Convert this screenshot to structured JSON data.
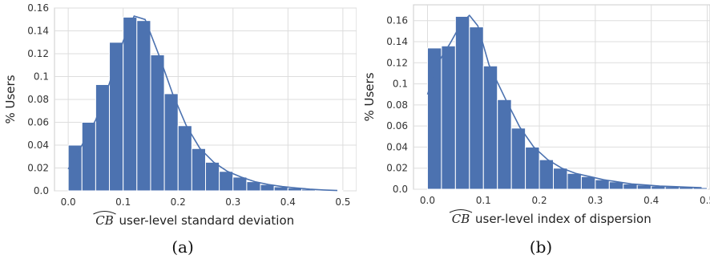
{
  "chart_data": [
    {
      "type": "bar",
      "subtype": "histogram-with-kde",
      "caption": "(a)",
      "xlabel_prefix": "CB",
      "xlabel": "user-level standard deviation",
      "ylabel": "% Users",
      "xlim": [
        -0.025,
        0.525
      ],
      "ylim": [
        0,
        0.16
      ],
      "xticks": [
        "0.0",
        "0.1",
        "0.2",
        "0.3",
        "0.4",
        "0.5"
      ],
      "yticks": [
        "0.0",
        "0.02",
        "0.04",
        "0.06",
        "0.08",
        "0.1",
        "0.12",
        "0.14",
        "0.16"
      ],
      "grid": true,
      "bin_width": 0.025,
      "bin_start": 0.0,
      "values": [
        0.04,
        0.06,
        0.093,
        0.13,
        0.152,
        0.149,
        0.119,
        0.085,
        0.057,
        0.037,
        0.025,
        0.017,
        0.012,
        0.008,
        0.0055,
        0.0035,
        0.0025,
        0.0015,
        0.0008,
        0.0003
      ],
      "kde": {
        "x": [
          0.0,
          0.025,
          0.05,
          0.075,
          0.1,
          0.12,
          0.14,
          0.165,
          0.19,
          0.215,
          0.24,
          0.265,
          0.29,
          0.315,
          0.34,
          0.365,
          0.39,
          0.415,
          0.44,
          0.465,
          0.49
        ],
        "y": [
          0.019,
          0.04,
          0.062,
          0.094,
          0.131,
          0.153,
          0.15,
          0.119,
          0.085,
          0.057,
          0.037,
          0.025,
          0.017,
          0.012,
          0.008,
          0.0055,
          0.0037,
          0.0025,
          0.0015,
          0.0008,
          0.0003
        ]
      },
      "color": "#4c72b0"
    },
    {
      "type": "bar",
      "subtype": "histogram-with-kde",
      "caption": "(b)",
      "xlabel_prefix": "CB",
      "xlabel": "user-level index of dispersion",
      "ylabel": "% Users",
      "xlim": [
        -0.025,
        0.505
      ],
      "ylim": [
        0,
        0.175
      ],
      "xticks": [
        "0.0",
        "0.1",
        "0.2",
        "0.3",
        "0.4",
        "0.5"
      ],
      "yticks": [
        "0.0",
        "0.02",
        "0.04",
        "0.06",
        "0.08",
        "0.1",
        "0.12",
        "0.14",
        "0.16"
      ],
      "grid": true,
      "bin_width": 0.025,
      "bin_start": 0.0,
      "values": [
        0.134,
        0.136,
        0.164,
        0.154,
        0.117,
        0.085,
        0.058,
        0.04,
        0.028,
        0.02,
        0.015,
        0.012,
        0.009,
        0.007,
        0.005,
        0.004,
        0.003,
        0.0025,
        0.002,
        0.0015
      ],
      "kde": {
        "x": [
          0.0,
          0.02,
          0.04,
          0.06,
          0.075,
          0.09,
          0.11,
          0.14,
          0.165,
          0.19,
          0.215,
          0.24,
          0.265,
          0.29,
          0.315,
          0.34,
          0.365,
          0.39,
          0.415,
          0.44,
          0.465,
          0.49
        ],
        "y": [
          0.09,
          0.121,
          0.138,
          0.157,
          0.165,
          0.155,
          0.118,
          0.085,
          0.059,
          0.04,
          0.028,
          0.02,
          0.015,
          0.012,
          0.009,
          0.007,
          0.005,
          0.004,
          0.003,
          0.0025,
          0.002,
          0.0015
        ]
      },
      "color": "#4c72b0"
    }
  ]
}
